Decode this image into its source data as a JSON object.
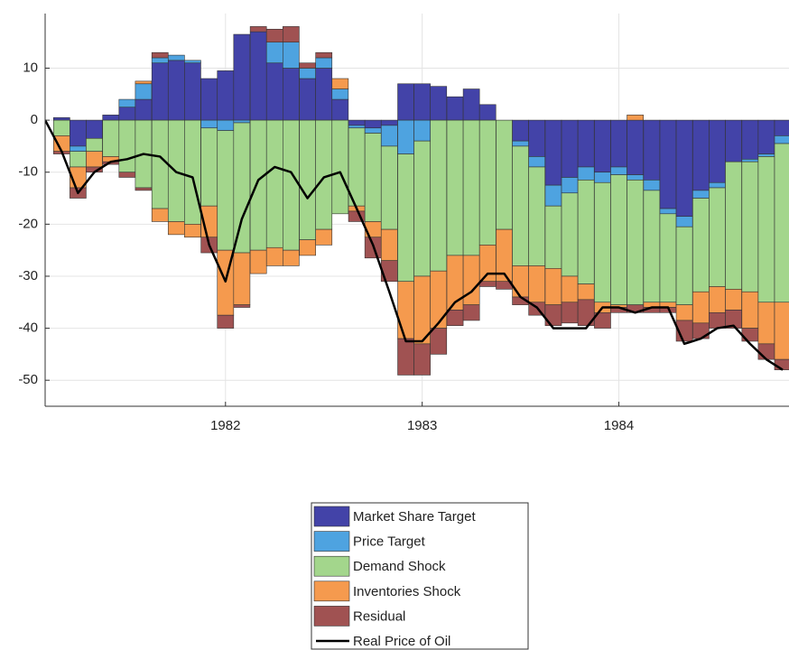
{
  "chart_data": {
    "type": "bar",
    "stacked": true,
    "grid": true,
    "x": [
      1981.167,
      1981.25,
      1981.333,
      1981.417,
      1981.5,
      1981.583,
      1981.667,
      1981.75,
      1981.833,
      1981.917,
      1982.0,
      1982.083,
      1982.167,
      1982.25,
      1982.333,
      1982.417,
      1982.5,
      1982.583,
      1982.667,
      1982.75,
      1982.833,
      1982.917,
      1983.0,
      1983.083,
      1983.167,
      1983.25,
      1983.333,
      1983.417,
      1983.5,
      1983.583,
      1983.667,
      1983.75,
      1983.833,
      1983.917,
      1984.0,
      1984.083,
      1984.167,
      1984.25,
      1984.333,
      1984.417,
      1984.5,
      1984.583,
      1984.667,
      1984.75,
      1984.833
    ],
    "xlim": [
      1981.083,
      1984.865
    ],
    "xticks": [
      1982,
      1983,
      1984
    ],
    "ylim": [
      -55,
      20.5
    ],
    "yticks": [
      -50,
      -40,
      -30,
      -20,
      -10,
      0,
      10
    ],
    "series": [
      {
        "name": "Market Share Target",
        "color": "#4343a8",
        "values": [
          0.5,
          -5,
          -3.5,
          1,
          2.5,
          4,
          11,
          11.5,
          11,
          8,
          9.5,
          16.5,
          17,
          11,
          10,
          8,
          10,
          4,
          -1,
          -1.5,
          -1,
          7,
          7,
          6.5,
          4.5,
          6,
          3,
          0,
          -4,
          -7,
          -12.5,
          -11,
          -9,
          -10,
          -9,
          -10.5,
          -11.5,
          -17,
          -18.5,
          -13.5,
          -12,
          -8,
          -7.5,
          -6.5,
          -3
        ]
      },
      {
        "name": "Price Target",
        "color": "#4ea3e0",
        "values": [
          0,
          -1,
          0,
          0,
          1.5,
          3,
          1,
          1,
          0.5,
          -1.5,
          -2,
          -0.5,
          0,
          4,
          5,
          2,
          2,
          2,
          -0.5,
          -1,
          -4,
          -6.5,
          -4,
          0,
          0,
          0,
          0,
          0,
          -1,
          -2,
          -4,
          -3,
          -2.5,
          -2,
          -1.5,
          -1,
          -2,
          -1,
          -2,
          -1.5,
          -1,
          0,
          -0.5,
          -0.5,
          -1.5
        ]
      },
      {
        "name": "Demand Shock",
        "color": "#a3d68c",
        "values": [
          -3,
          -3,
          -2.5,
          -7,
          -10,
          -13,
          -17,
          -19.5,
          -20,
          -15,
          -23,
          -25,
          -25,
          -24.5,
          -25,
          -23,
          -21,
          -18,
          -15,
          -17,
          -16,
          -24.5,
          -26,
          -29,
          -26,
          -26,
          -24,
          -21,
          -23,
          -19,
          -12,
          -16,
          -20,
          -23,
          -25,
          -24,
          -21.5,
          -17,
          -15,
          -18,
          -19,
          -24.5,
          -25,
          -28,
          -30.5
        ]
      },
      {
        "name": "Inventories Shock",
        "color": "#f59a4e",
        "values": [
          -3,
          -4,
          -3,
          -1,
          0,
          0.5,
          -2.5,
          -2.5,
          -2.5,
          -6,
          -12.5,
          -10,
          -4.5,
          -3.5,
          -3,
          -3,
          -3,
          2,
          -1,
          -3,
          -6,
          -11,
          -13,
          -11,
          -10.5,
          -9.5,
          -7,
          -10,
          -6,
          -7,
          -7,
          -5,
          -3,
          -2,
          -0.5,
          1,
          -1,
          -1,
          -3,
          -6,
          -5,
          -4,
          -7,
          -8,
          -11
        ]
      },
      {
        "name": "Residual",
        "color": "#a05252",
        "values": [
          -0.5,
          -2,
          -1,
          -0.5,
          -1,
          -0.5,
          1,
          0,
          0,
          -3,
          -2.5,
          -0.5,
          1,
          2.5,
          3,
          1,
          1,
          0,
          -2,
          -4,
          -4,
          -7,
          -6,
          -5,
          -3,
          -3,
          -1,
          -1.5,
          -1.5,
          -2.5,
          -4,
          -4,
          -5,
          -3,
          -1,
          -1.5,
          -1,
          -1,
          -4,
          -3,
          -3,
          -3.5,
          -2.5,
          -3,
          -2
        ]
      },
      {
        "name": "Real Price of Oil",
        "type": "line",
        "color": "#000000",
        "x": [
          1981.083,
          1981.167,
          1981.25,
          1981.333,
          1981.417,
          1981.5,
          1981.583,
          1981.667,
          1981.75,
          1981.833,
          1981.917,
          1982.0,
          1982.083,
          1982.167,
          1982.25,
          1982.333,
          1982.417,
          1982.5,
          1982.583,
          1982.667,
          1982.75,
          1982.833,
          1982.917,
          1983.0,
          1983.083,
          1983.167,
          1983.25,
          1983.333,
          1983.417,
          1983.5,
          1983.583,
          1983.667,
          1983.75,
          1983.833,
          1983.917,
          1984.0,
          1984.083,
          1984.167,
          1984.25,
          1984.333,
          1984.417,
          1984.5,
          1984.583,
          1984.667,
          1984.75,
          1984.833
        ],
        "values": [
          0,
          -6,
          -14,
          -10,
          -8,
          -7.5,
          -6.5,
          -7,
          -10,
          -11,
          -24,
          -31,
          -19,
          -11.5,
          -9,
          -10,
          -15,
          -11,
          -10,
          -17,
          -24,
          -33,
          -42.5,
          -42.5,
          -39,
          -35,
          -33,
          -29.5,
          -29.5,
          -34,
          -36,
          -40,
          -40,
          -40,
          -36,
          -36,
          -37,
          -36,
          -36,
          -43,
          -42,
          -40,
          -39.5,
          -43,
          -46,
          -48
        ]
      }
    ]
  }
}
